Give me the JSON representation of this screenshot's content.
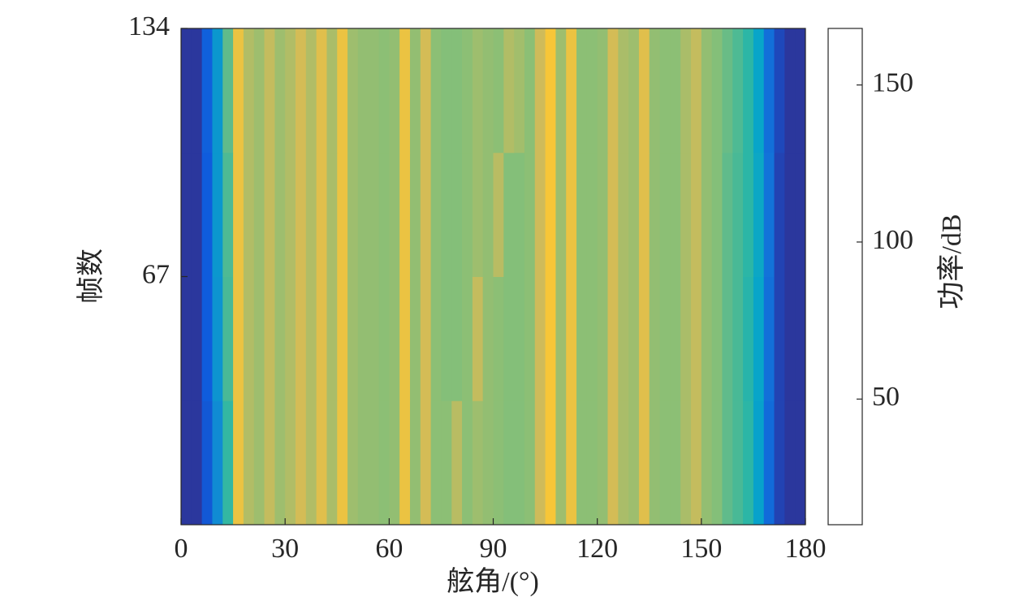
{
  "chart_data": {
    "type": "heatmap",
    "xlabel": "舷角/(°)",
    "ylabel": "帧数",
    "colorbar_label": "功率/dB",
    "xbins": [
      0,
      3,
      6,
      9,
      12,
      15,
      18,
      21,
      24,
      27,
      30,
      33,
      36,
      39,
      42,
      45,
      48,
      51,
      54,
      57,
      60,
      63,
      66,
      69,
      72,
      75,
      78,
      81,
      84,
      87,
      90,
      93,
      96,
      99,
      102,
      105,
      108,
      111,
      114,
      117,
      120,
      123,
      126,
      129,
      132,
      135,
      138,
      141,
      144,
      147,
      150,
      153,
      156,
      159,
      162,
      165,
      168,
      171,
      174,
      177,
      180
    ],
    "ybins": [
      0,
      33.5,
      67,
      100.5,
      134
    ],
    "z": [
      [
        15,
        15,
        28,
        55,
        90,
        140,
        120,
        115,
        125,
        115,
        120,
        130,
        120,
        135,
        118,
        140,
        115,
        112,
        112,
        110,
        112,
        140,
        112,
        130,
        110,
        110,
        122,
        110,
        115,
        112,
        110,
        108,
        108,
        110,
        128,
        145,
        115,
        140,
        110,
        110,
        112,
        130,
        118,
        115,
        135,
        112,
        110,
        110,
        118,
        125,
        112,
        108,
        100,
        95,
        88,
        68,
        38,
        20,
        15,
        15
      ],
      [
        15,
        15,
        30,
        60,
        95,
        140,
        120,
        115,
        125,
        115,
        120,
        130,
        120,
        135,
        118,
        140,
        115,
        112,
        112,
        110,
        112,
        140,
        112,
        130,
        110,
        108,
        108,
        110,
        125,
        112,
        110,
        108,
        108,
        110,
        128,
        145,
        115,
        140,
        110,
        110,
        112,
        130,
        118,
        115,
        135,
        112,
        110,
        110,
        118,
        125,
        112,
        108,
        100,
        95,
        86,
        70,
        40,
        20,
        15,
        15
      ],
      [
        15,
        15,
        30,
        62,
        96,
        140,
        120,
        115,
        125,
        115,
        120,
        130,
        120,
        135,
        118,
        140,
        115,
        112,
        112,
        110,
        112,
        140,
        112,
        130,
        110,
        108,
        108,
        110,
        115,
        112,
        122,
        108,
        108,
        110,
        128,
        145,
        115,
        140,
        110,
        110,
        112,
        130,
        118,
        115,
        135,
        112,
        110,
        110,
        118,
        125,
        112,
        108,
        100,
        95,
        88,
        72,
        42,
        20,
        15,
        15
      ],
      [
        15,
        15,
        32,
        62,
        100,
        140,
        120,
        115,
        125,
        115,
        120,
        130,
        120,
        135,
        118,
        140,
        115,
        112,
        112,
        110,
        112,
        140,
        112,
        130,
        110,
        108,
        108,
        110,
        115,
        112,
        110,
        120,
        116,
        110,
        128,
        145,
        115,
        140,
        110,
        110,
        112,
        130,
        118,
        115,
        135,
        112,
        110,
        110,
        118,
        125,
        112,
        108,
        102,
        96,
        88,
        70,
        40,
        22,
        15,
        15
      ]
    ],
    "xlim": [
      0,
      180
    ],
    "xticks": [
      0,
      30,
      60,
      90,
      120,
      150,
      180
    ],
    "ylim": [
      0,
      134
    ],
    "yticks": [
      67,
      134
    ],
    "clim": [
      10,
      168
    ],
    "cticks": [
      50,
      100,
      150
    ],
    "colormap": [
      "#352a87",
      "#0f5cdd",
      "#1481d6",
      "#06a4ca",
      "#2eb7a4",
      "#87bf77",
      "#d1bb59",
      "#fec832",
      "#f9fb0e"
    ]
  }
}
